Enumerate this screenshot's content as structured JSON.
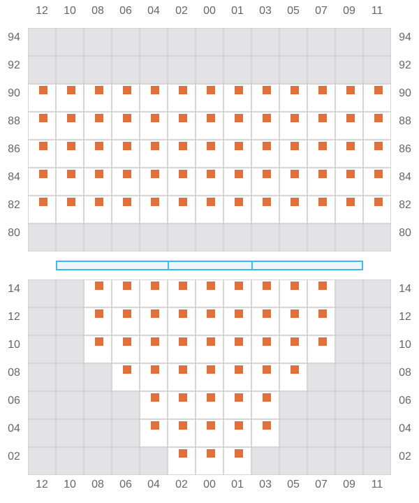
{
  "columns": [
    "12",
    "10",
    "08",
    "06",
    "04",
    "02",
    "00",
    "01",
    "03",
    "05",
    "07",
    "09",
    "11"
  ],
  "colors": {
    "seat": "#e2703a",
    "unavailable": "#e4e4e6",
    "grid": "#d4d4d6",
    "bar_border": "#3bbcf0",
    "bar_fill": "#eef6ff"
  },
  "sections": [
    {
      "rows": [
        {
          "label": "94",
          "available": []
        },
        {
          "label": "92",
          "available": []
        },
        {
          "label": "90",
          "available": [
            "12",
            "10",
            "08",
            "06",
            "04",
            "02",
            "00",
            "01",
            "03",
            "05",
            "07",
            "09",
            "11"
          ]
        },
        {
          "label": "88",
          "available": [
            "12",
            "10",
            "08",
            "06",
            "04",
            "02",
            "00",
            "01",
            "03",
            "05",
            "07",
            "09",
            "11"
          ]
        },
        {
          "label": "86",
          "available": [
            "12",
            "10",
            "08",
            "06",
            "04",
            "02",
            "00",
            "01",
            "03",
            "05",
            "07",
            "09",
            "11"
          ]
        },
        {
          "label": "84",
          "available": [
            "12",
            "10",
            "08",
            "06",
            "04",
            "02",
            "00",
            "01",
            "03",
            "05",
            "07",
            "09",
            "11"
          ]
        },
        {
          "label": "82",
          "available": [
            "12",
            "10",
            "08",
            "06",
            "04",
            "02",
            "00",
            "01",
            "03",
            "05",
            "07",
            "09",
            "11"
          ]
        },
        {
          "label": "80",
          "available": []
        }
      ]
    },
    {
      "rows": [
        {
          "label": "14",
          "available": [
            "08",
            "06",
            "04",
            "02",
            "00",
            "01",
            "03",
            "05",
            "07"
          ]
        },
        {
          "label": "12",
          "available": [
            "08",
            "06",
            "04",
            "02",
            "00",
            "01",
            "03",
            "05",
            "07"
          ]
        },
        {
          "label": "10",
          "available": [
            "08",
            "06",
            "04",
            "02",
            "00",
            "01",
            "03",
            "05",
            "07"
          ]
        },
        {
          "label": "08",
          "available": [
            "06",
            "04",
            "02",
            "00",
            "01",
            "03",
            "05"
          ]
        },
        {
          "label": "06",
          "available": [
            "04",
            "02",
            "00",
            "01",
            "03"
          ]
        },
        {
          "label": "04",
          "available": [
            "04",
            "02",
            "00",
            "01",
            "03"
          ]
        },
        {
          "label": "02",
          "available": [
            "02",
            "00",
            "01"
          ]
        }
      ]
    }
  ]
}
